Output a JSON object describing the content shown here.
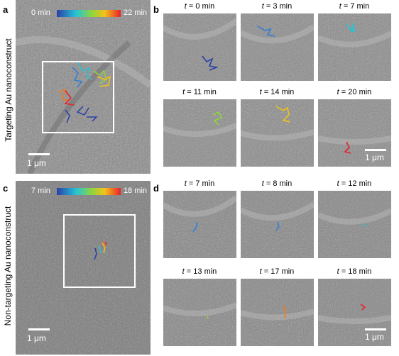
{
  "panels": {
    "a": {
      "letter": "a",
      "side_label": "Targeting Au nanoconstruct",
      "colorbar_start": "0 min",
      "colorbar_end": "22 min",
      "scale_label": "1 μm"
    },
    "b": {
      "letter": "b",
      "tiles": [
        {
          "t": "0 min"
        },
        {
          "t": "3 min"
        },
        {
          "t": "7 min"
        },
        {
          "t": "11 min"
        },
        {
          "t": "14 min"
        },
        {
          "t": "20 min"
        }
      ],
      "scale_label": "1 μm"
    },
    "c": {
      "letter": "c",
      "side_label": "Non-targeting Au nanoconstruct",
      "colorbar_start": "7 min",
      "colorbar_end": "18 min",
      "scale_label": "1 μm"
    },
    "d": {
      "letter": "d",
      "tiles": [
        {
          "t": "7 min"
        },
        {
          "t": "8 min"
        },
        {
          "t": "12 min"
        },
        {
          "t": "13 min"
        },
        {
          "t": "17 min"
        },
        {
          "t": "18 min"
        }
      ],
      "scale_label": "1 μm"
    }
  },
  "time_prefix": "t",
  "time_eq": " = ",
  "colors": {
    "t0": "#2b3fa8",
    "t1": "#2f7fd4",
    "t2": "#26c3d6",
    "t3": "#8ed63a",
    "t4": "#f3c21a",
    "t5": "#e8202a",
    "t_orange": "#f07a1a"
  }
}
